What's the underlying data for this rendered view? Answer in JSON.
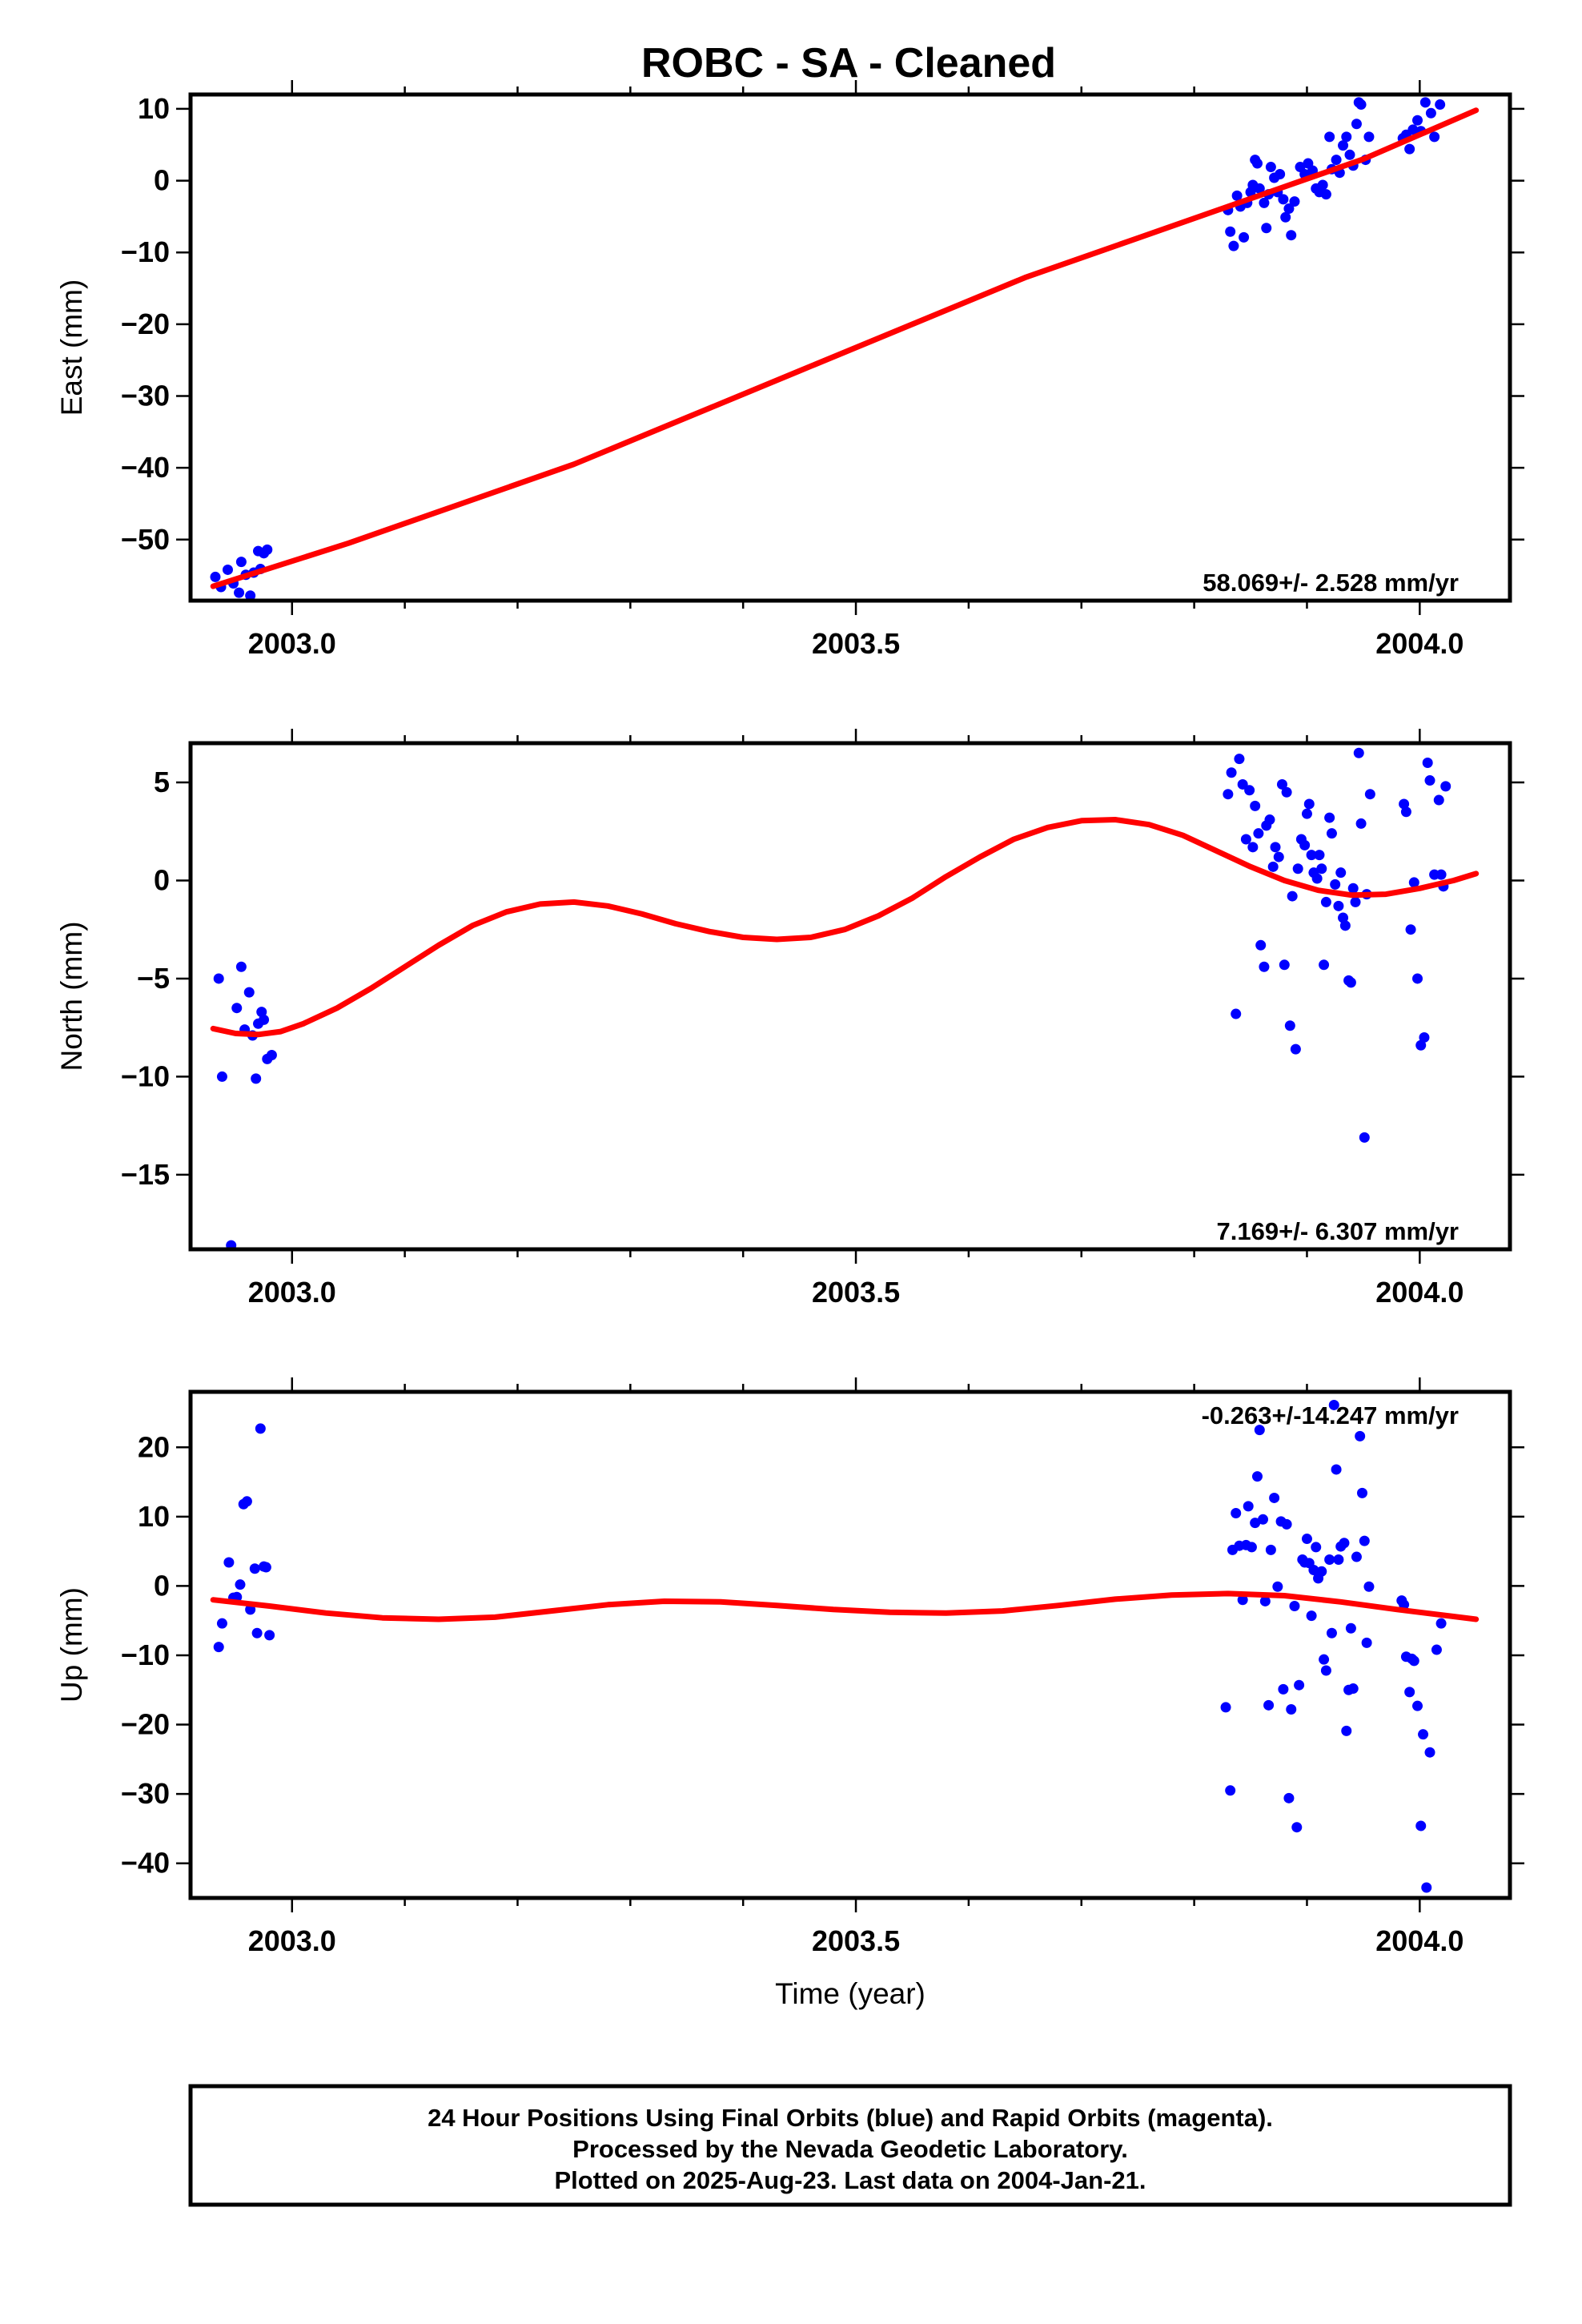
{
  "title": "ROBC  - SA - Cleaned",
  "footer": {
    "line1": "24 Hour Positions Using Final Orbits (blue) and Rapid Orbits (magenta).",
    "line2": "Processed by the Nevada Geodetic Laboratory.",
    "line3": "Plotted on 2025-Aug-23. Last data on 2004-Jan-21."
  },
  "colors": {
    "points": "#0000ff",
    "fit": "#ff0000",
    "frame": "#000000"
  },
  "chart_data": [
    {
      "type": "scatter",
      "panel": "east",
      "ylabel": "East (mm)",
      "xlabel": "",
      "xlim": [
        2002.91,
        2004.08
      ],
      "ylim": [
        -58.5,
        12
      ],
      "xticks": [
        2003.0,
        2003.5,
        2004.0
      ],
      "yticks": [
        10,
        0,
        -10,
        -20,
        -30,
        -40,
        -50
      ],
      "ytick_labels": [
        "10",
        "0",
        "−10",
        "−20",
        "−30",
        "−40",
        "−50"
      ],
      "rate": "58.069+/- 2.528 mm/yr",
      "rate_position": "bottom-right",
      "grid": false,
      "points": [
        [
          2002.932,
          -55.2
        ],
        [
          2002.937,
          -56.6
        ],
        [
          2002.943,
          -54.2
        ],
        [
          2002.948,
          -56.1
        ],
        [
          2002.953,
          -57.4
        ],
        [
          2002.955,
          -53.1
        ],
        [
          2002.959,
          -54.9
        ],
        [
          2002.963,
          -57.8
        ],
        [
          2002.966,
          -54.6
        ],
        [
          2002.97,
          -51.6
        ],
        [
          2002.972,
          -54.1
        ],
        [
          2002.975,
          -51.9
        ],
        [
          2002.978,
          -51.4
        ],
        [
          2003.83,
          -4.1
        ],
        [
          2003.832,
          -7.1
        ],
        [
          2003.835,
          -9.1
        ],
        [
          2003.838,
          -2.1
        ],
        [
          2003.841,
          -3.6
        ],
        [
          2003.844,
          -7.9
        ],
        [
          2003.847,
          -3.1
        ],
        [
          2003.85,
          -1.6
        ],
        [
          2003.852,
          -0.6
        ],
        [
          2003.854,
          2.9
        ],
        [
          2003.856,
          2.4
        ],
        [
          2003.858,
          -1.1
        ],
        [
          2003.862,
          -3.1
        ],
        [
          2003.864,
          -6.6
        ],
        [
          2003.866,
          -1.9
        ],
        [
          2003.868,
          1.9
        ],
        [
          2003.871,
          0.4
        ],
        [
          2003.874,
          -1.6
        ],
        [
          2003.876,
          0.9
        ],
        [
          2003.879,
          -2.6
        ],
        [
          2003.881,
          -5.1
        ],
        [
          2003.884,
          -3.9
        ],
        [
          2003.886,
          -7.6
        ],
        [
          2003.889,
          -2.9
        ],
        [
          2003.894,
          1.9
        ],
        [
          2003.898,
          0.9
        ],
        [
          2003.901,
          2.4
        ],
        [
          2003.905,
          1.4
        ],
        [
          2003.908,
          -1.1
        ],
        [
          2003.911,
          -1.6
        ],
        [
          2003.914,
          -0.6
        ],
        [
          2003.917,
          -1.9
        ],
        [
          2003.92,
          6.1
        ],
        [
          2003.922,
          1.6
        ],
        [
          2003.926,
          2.9
        ],
        [
          2003.929,
          1.1
        ],
        [
          2003.932,
          4.9
        ],
        [
          2003.935,
          6.1
        ],
        [
          2003.938,
          3.6
        ],
        [
          2003.941,
          2.1
        ],
        [
          2003.944,
          7.9
        ],
        [
          2003.946,
          10.9
        ],
        [
          2003.948,
          10.6
        ],
        [
          2003.952,
          2.9
        ],
        [
          2003.955,
          6.1
        ],
        [
          2003.985,
          5.9
        ],
        [
          2003.988,
          6.4
        ],
        [
          2003.991,
          4.4
        ],
        [
          2003.994,
          7.1
        ],
        [
          2003.998,
          8.4
        ],
        [
          2004.001,
          6.9
        ],
        [
          2004.005,
          10.9
        ],
        [
          2004.01,
          9.4
        ],
        [
          2004.013,
          6.1
        ],
        [
          2004.018,
          10.6
        ]
      ],
      "fit": [
        [
          2002.93,
          -56.5
        ],
        [
          2003.05,
          -50.5
        ],
        [
          2003.15,
          -45.0
        ],
        [
          2003.25,
          -39.5
        ],
        [
          2003.35,
          -33.0
        ],
        [
          2003.45,
          -26.5
        ],
        [
          2003.55,
          -20.0
        ],
        [
          2003.65,
          -13.5
        ],
        [
          2003.75,
          -8.0
        ],
        [
          2003.85,
          -2.5
        ],
        [
          2003.95,
          3.0
        ],
        [
          2004.05,
          9.8
        ]
      ]
    },
    {
      "type": "scatter",
      "panel": "north",
      "ylabel": "North (mm)",
      "xlabel": "",
      "xlim": [
        2002.91,
        2004.08
      ],
      "ylim": [
        -18.8,
        7
      ],
      "xticks": [
        2003.0,
        2003.5,
        2004.0
      ],
      "yticks": [
        5,
        0,
        -5,
        -10,
        -15
      ],
      "ytick_labels": [
        "5",
        "0",
        "−5",
        "−10",
        "−15"
      ],
      "rate": "7.169+/- 6.307 mm/yr",
      "rate_position": "bottom-right",
      "grid": false,
      "points": [
        [
          2002.935,
          -5.0
        ],
        [
          2002.938,
          -10.0
        ],
        [
          2002.946,
          -18.6
        ],
        [
          2002.951,
          -6.5
        ],
        [
          2002.955,
          -4.4
        ],
        [
          2002.958,
          -7.6
        ],
        [
          2002.962,
          -5.7
        ],
        [
          2002.965,
          -7.9
        ],
        [
          2002.968,
          -10.1
        ],
        [
          2002.97,
          -7.3
        ],
        [
          2002.973,
          -6.7
        ],
        [
          2002.975,
          -7.1
        ],
        [
          2002.978,
          -9.1
        ],
        [
          2002.982,
          -8.9
        ],
        [
          2003.83,
          4.4
        ],
        [
          2003.833,
          5.5
        ],
        [
          2003.837,
          -6.8
        ],
        [
          2003.84,
          6.2
        ],
        [
          2003.843,
          4.9
        ],
        [
          2003.846,
          2.1
        ],
        [
          2003.849,
          4.6
        ],
        [
          2003.852,
          1.7
        ],
        [
          2003.854,
          3.8
        ],
        [
          2003.857,
          2.4
        ],
        [
          2003.859,
          -3.3
        ],
        [
          2003.862,
          -4.4
        ],
        [
          2003.864,
          2.8
        ],
        [
          2003.867,
          3.1
        ],
        [
          2003.87,
          0.7
        ],
        [
          2003.872,
          1.7
        ],
        [
          2003.875,
          1.2
        ],
        [
          2003.878,
          4.9
        ],
        [
          2003.88,
          -4.3
        ],
        [
          2003.882,
          4.5
        ],
        [
          2003.885,
          -7.4
        ],
        [
          2003.887,
          -0.8
        ],
        [
          2003.89,
          -8.6
        ],
        [
          2003.892,
          0.6
        ],
        [
          2003.895,
          2.1
        ],
        [
          2003.898,
          1.8
        ],
        [
          2003.9,
          3.4
        ],
        [
          2003.902,
          3.9
        ],
        [
          2003.904,
          1.3
        ],
        [
          2003.906,
          0.4
        ],
        [
          2003.909,
          0.1
        ],
        [
          2003.911,
          1.3
        ],
        [
          2003.913,
          0.6
        ],
        [
          2003.915,
          -4.3
        ],
        [
          2003.917,
          -1.1
        ],
        [
          2003.92,
          3.2
        ],
        [
          2003.922,
          2.4
        ],
        [
          2003.925,
          -0.2
        ],
        [
          2003.928,
          -1.3
        ],
        [
          2003.93,
          0.4
        ],
        [
          2003.932,
          -1.9
        ],
        [
          2003.934,
          -2.3
        ],
        [
          2003.937,
          -5.1
        ],
        [
          2003.939,
          -5.2
        ],
        [
          2003.941,
          -0.4
        ],
        [
          2003.943,
          -1.1
        ],
        [
          2003.946,
          6.5
        ],
        [
          2003.948,
          2.9
        ],
        [
          2003.951,
          -13.1
        ],
        [
          2003.953,
          -0.7
        ],
        [
          2003.956,
          4.4
        ],
        [
          2003.986,
          3.9
        ],
        [
          2003.988,
          3.5
        ],
        [
          2003.992,
          -2.5
        ],
        [
          2003.995,
          -0.1
        ],
        [
          2003.998,
          -5.0
        ],
        [
          2004.001,
          -8.4
        ],
        [
          2004.004,
          -8.0
        ],
        [
          2004.007,
          6.0
        ],
        [
          2004.009,
          5.1
        ],
        [
          2004.013,
          0.3
        ],
        [
          2004.017,
          4.1
        ],
        [
          2004.019,
          0.3
        ],
        [
          2004.021,
          -0.3
        ],
        [
          2004.023,
          4.8
        ]
      ],
      "fit": [
        [
          2002.93,
          -7.55
        ],
        [
          2002.95,
          -7.8
        ],
        [
          2002.97,
          -7.85
        ],
        [
          2002.99,
          -7.7
        ],
        [
          2003.01,
          -7.3
        ],
        [
          2003.04,
          -6.5
        ],
        [
          2003.07,
          -5.5
        ],
        [
          2003.1,
          -4.4
        ],
        [
          2003.13,
          -3.3
        ],
        [
          2003.16,
          -2.3
        ],
        [
          2003.19,
          -1.6
        ],
        [
          2003.22,
          -1.2
        ],
        [
          2003.25,
          -1.1
        ],
        [
          2003.28,
          -1.3
        ],
        [
          2003.31,
          -1.7
        ],
        [
          2003.34,
          -2.2
        ],
        [
          2003.37,
          -2.6
        ],
        [
          2003.4,
          -2.9
        ],
        [
          2003.43,
          -3.0
        ],
        [
          2003.46,
          -2.9
        ],
        [
          2003.49,
          -2.5
        ],
        [
          2003.52,
          -1.8
        ],
        [
          2003.55,
          -0.9
        ],
        [
          2003.58,
          0.2
        ],
        [
          2003.61,
          1.2
        ],
        [
          2003.64,
          2.1
        ],
        [
          2003.67,
          2.7
        ],
        [
          2003.7,
          3.05
        ],
        [
          2003.73,
          3.1
        ],
        [
          2003.76,
          2.85
        ],
        [
          2003.79,
          2.3
        ],
        [
          2003.82,
          1.5
        ],
        [
          2003.85,
          0.7
        ],
        [
          2003.88,
          0.0
        ],
        [
          2003.91,
          -0.5
        ],
        [
          2003.94,
          -0.75
        ],
        [
          2003.97,
          -0.7
        ],
        [
          2004.0,
          -0.4
        ],
        [
          2004.03,
          0.0
        ],
        [
          2004.05,
          0.35
        ]
      ]
    },
    {
      "type": "scatter",
      "panel": "up",
      "ylabel": "Up (mm)",
      "xlabel": "Time (year)",
      "xlim": [
        2002.91,
        2004.08
      ],
      "ylim": [
        -45,
        28
      ],
      "xticks": [
        2003.0,
        2003.5,
        2004.0
      ],
      "yticks": [
        20,
        10,
        0,
        -10,
        -20,
        -30,
        -40
      ],
      "ytick_labels": [
        "20",
        "10",
        "0",
        "−10",
        "−20",
        "−30",
        "−40"
      ],
      "rate": "-0.263+/-14.247 mm/yr",
      "rate_position": "top-right",
      "grid": false,
      "points": [
        [
          2002.935,
          -8.8
        ],
        [
          2002.938,
          -5.4
        ],
        [
          2002.944,
          3.4
        ],
        [
          2002.948,
          -1.7
        ],
        [
          2002.951,
          -1.6
        ],
        [
          2002.954,
          0.2
        ],
        [
          2002.957,
          11.8
        ],
        [
          2002.96,
          12.2
        ],
        [
          2002.963,
          -3.4
        ],
        [
          2002.967,
          2.5
        ],
        [
          2002.969,
          -6.8
        ],
        [
          2002.972,
          22.7
        ],
        [
          2002.975,
          2.8
        ],
        [
          2002.977,
          2.7
        ],
        [
          2002.98,
          -7.1
        ],
        [
          2003.828,
          -17.5
        ],
        [
          2003.832,
          -29.5
        ],
        [
          2003.834,
          5.2
        ],
        [
          2003.837,
          10.5
        ],
        [
          2003.84,
          5.8
        ],
        [
          2003.843,
          -2.0
        ],
        [
          2003.846,
          5.9
        ],
        [
          2003.848,
          11.5
        ],
        [
          2003.851,
          5.6
        ],
        [
          2003.854,
          9.1
        ],
        [
          2003.856,
          15.8
        ],
        [
          2003.858,
          22.5
        ],
        [
          2003.861,
          9.6
        ],
        [
          2003.863,
          -2.2
        ],
        [
          2003.866,
          -17.2
        ],
        [
          2003.868,
          5.2
        ],
        [
          2003.871,
          12.7
        ],
        [
          2003.874,
          -0.1
        ],
        [
          2003.877,
          9.3
        ],
        [
          2003.879,
          -14.9
        ],
        [
          2003.882,
          8.9
        ],
        [
          2003.884,
          -30.6
        ],
        [
          2003.886,
          -17.8
        ],
        [
          2003.889,
          -2.9
        ],
        [
          2003.891,
          -34.8
        ],
        [
          2003.893,
          -14.3
        ],
        [
          2003.896,
          3.8
        ],
        [
          2003.898,
          3.4
        ],
        [
          2003.9,
          6.8
        ],
        [
          2003.902,
          3.3
        ],
        [
          2003.904,
          -4.3
        ],
        [
          2003.906,
          2.3
        ],
        [
          2003.908,
          5.6
        ],
        [
          2003.91,
          1.1
        ],
        [
          2003.913,
          2.1
        ],
        [
          2003.915,
          -10.6
        ],
        [
          2003.917,
          -12.2
        ],
        [
          2003.92,
          3.8
        ],
        [
          2003.922,
          -6.8
        ],
        [
          2003.924,
          26.1
        ],
        [
          2003.926,
          16.8
        ],
        [
          2003.928,
          3.8
        ],
        [
          2003.93,
          5.7
        ],
        [
          2003.933,
          6.2
        ],
        [
          2003.935,
          -20.9
        ],
        [
          2003.937,
          -15.0
        ],
        [
          2003.939,
          -6.1
        ],
        [
          2003.941,
          -14.8
        ],
        [
          2003.944,
          4.2
        ],
        [
          2003.947,
          21.6
        ],
        [
          2003.949,
          13.4
        ],
        [
          2003.951,
          6.5
        ],
        [
          2003.953,
          -8.2
        ],
        [
          2003.955,
          -0.1
        ],
        [
          2003.984,
          -2.1
        ],
        [
          2003.986,
          -2.7
        ],
        [
          2003.988,
          -10.2
        ],
        [
          2003.991,
          -15.3
        ],
        [
          2003.993,
          -10.5
        ],
        [
          2003.995,
          -10.8
        ],
        [
          2003.998,
          -17.3
        ],
        [
          2004.001,
          -34.6
        ],
        [
          2004.003,
          -21.4
        ],
        [
          2004.006,
          -43.5
        ],
        [
          2004.009,
          -24.0
        ],
        [
          2004.015,
          -9.2
        ],
        [
          2004.019,
          -5.4
        ]
      ],
      "fit": [
        [
          2002.93,
          -2.0
        ],
        [
          2002.98,
          -2.9
        ],
        [
          2003.03,
          -3.9
        ],
        [
          2003.08,
          -4.6
        ],
        [
          2003.13,
          -4.8
        ],
        [
          2003.18,
          -4.5
        ],
        [
          2003.23,
          -3.6
        ],
        [
          2003.28,
          -2.7
        ],
        [
          2003.33,
          -2.2
        ],
        [
          2003.38,
          -2.3
        ],
        [
          2003.43,
          -2.8
        ],
        [
          2003.48,
          -3.4
        ],
        [
          2003.53,
          -3.8
        ],
        [
          2003.58,
          -3.9
        ],
        [
          2003.63,
          -3.6
        ],
        [
          2003.68,
          -2.8
        ],
        [
          2003.73,
          -1.9
        ],
        [
          2003.78,
          -1.3
        ],
        [
          2003.83,
          -1.1
        ],
        [
          2003.88,
          -1.4
        ],
        [
          2003.93,
          -2.3
        ],
        [
          2003.98,
          -3.4
        ],
        [
          2004.03,
          -4.4
        ],
        [
          2004.05,
          -4.8
        ]
      ]
    }
  ]
}
